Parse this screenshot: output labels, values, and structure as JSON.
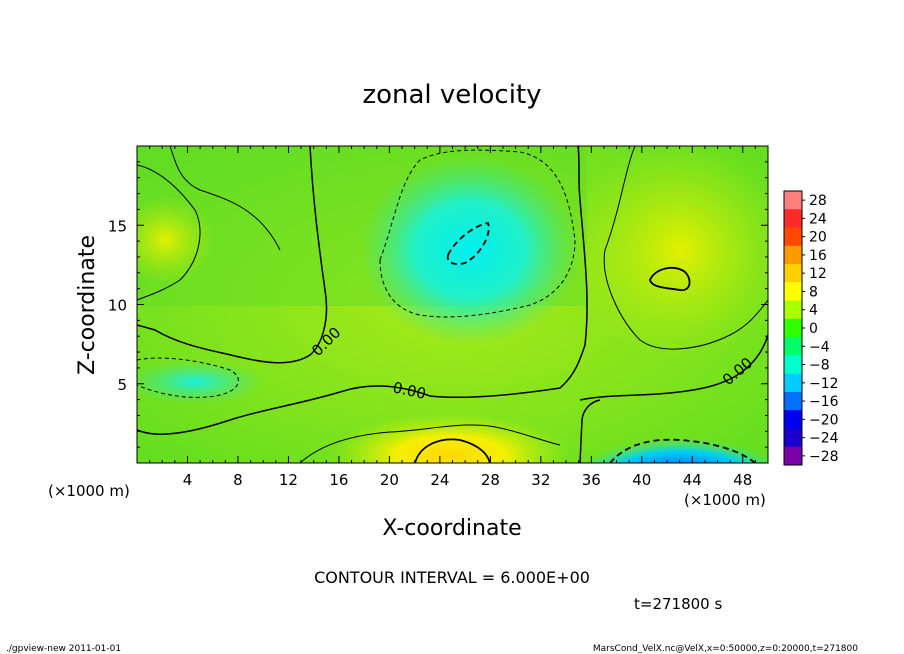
{
  "chart_data": {
    "type": "heatmap",
    "title": "zonal velocity",
    "xlabel": "X-coordinate",
    "ylabel": "Z-coordinate",
    "x_unit_note": "(×1000 m)",
    "z_unit_note": "(×1000 m)",
    "xlim": [
      0,
      50
    ],
    "ylim": [
      0,
      20
    ],
    "x_ticks": [
      4,
      8,
      12,
      16,
      20,
      24,
      28,
      32,
      36,
      40,
      44,
      48
    ],
    "y_ticks": [
      5,
      10,
      15
    ],
    "colorbar": {
      "levels": [
        28,
        24,
        20,
        16,
        12,
        8,
        4,
        0,
        -4,
        -8,
        -12,
        -16,
        -20,
        -24,
        -28
      ],
      "labels": [
        "28",
        "24",
        "20",
        "16",
        "12",
        "8",
        "4",
        "0",
        "−4",
        "−8",
        "−12",
        "−16",
        "−20",
        "−24",
        "−28"
      ],
      "colors": [
        "#ff7f7f",
        "#ff2a2a",
        "#ff4800",
        "#ff9a00",
        "#ffd000",
        "#ffff00",
        "#aaff00",
        "#30ff00",
        "#00ff66",
        "#00ffcc",
        "#00ccff",
        "#0070ff",
        "#0000ee",
        "#1a00cc",
        "#7a00aa"
      ]
    },
    "field_features": [
      {
        "type": "negative_core",
        "x": 26,
        "z": 13.8,
        "value": -10
      },
      {
        "type": "negative_core",
        "x": 41.5,
        "z": 0.8,
        "value": -22
      },
      {
        "type": "negative_core",
        "x": 4,
        "z": 5,
        "value": -10
      },
      {
        "type": "positive_core",
        "x": 24.5,
        "z": 0.8,
        "value": 14
      },
      {
        "type": "positive_core",
        "x": 42.5,
        "z": 12,
        "value": 10
      },
      {
        "type": "positive_core",
        "x": 2,
        "z": 14,
        "value": 9
      }
    ],
    "contour_labels": [
      "0.00",
      "0.00",
      "0.00"
    ],
    "contour_interval_text": "CONTOUR INTERVAL = 6.000E+00",
    "time_text": "t=271800 s"
  },
  "footer": {
    "left": "./gpview-new  2011-01-01",
    "right": "MarsCond_VelX.nc@VelX,x=0:50000,z=0:20000,t=271800"
  }
}
